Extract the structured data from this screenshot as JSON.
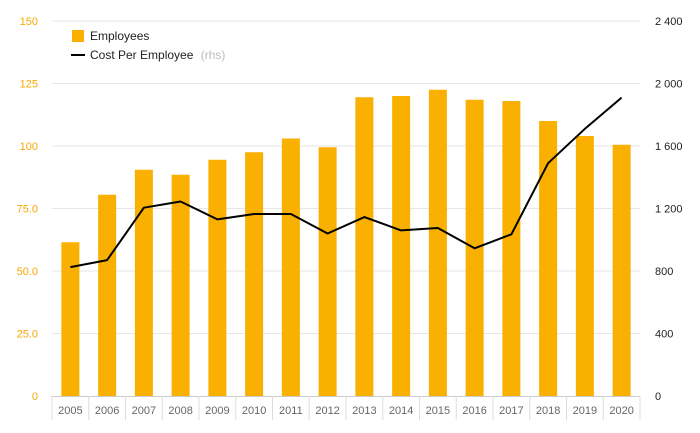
{
  "chart_data": {
    "type": "bar",
    "categories": [
      "2005",
      "2006",
      "2007",
      "2008",
      "2009",
      "2010",
      "2011",
      "2012",
      "2013",
      "2014",
      "2015",
      "2016",
      "2017",
      "2018",
      "2019",
      "2020"
    ],
    "series": [
      {
        "name": "Employees",
        "type": "bar",
        "axis": "left",
        "values": [
          61.5,
          80.5,
          90.5,
          88.5,
          94.5,
          97.5,
          103,
          99.5,
          119.5,
          120,
          122.5,
          118.5,
          118,
          110,
          104,
          100.5
        ]
      },
      {
        "name": "Cost Per Employee",
        "type": "line",
        "axis": "right",
        "values": [
          825,
          870,
          1205,
          1245,
          1130,
          1165,
          1165,
          1040,
          1145,
          1060,
          1075,
          945,
          1035,
          1490,
          1710,
          1910
        ]
      }
    ],
    "legend": {
      "position": "top-left",
      "items": [
        {
          "label": "Employees",
          "note": ""
        },
        {
          "label": "Cost Per Employee",
          "note": "(rhs)"
        }
      ]
    },
    "y_left": {
      "ylim": [
        0,
        150
      ],
      "ticks": [
        0,
        25,
        50,
        75,
        100,
        125,
        150
      ],
      "tick_labels": [
        "0",
        "25.0",
        "50.0",
        "75.0",
        "100",
        "125",
        "150"
      ]
    },
    "y_right": {
      "ylim": [
        0,
        2400
      ],
      "ticks": [
        0,
        400,
        800,
        1200,
        1600,
        2000,
        2400
      ],
      "tick_labels": [
        "0",
        "400",
        "800",
        "1 200",
        "1 600",
        "2 000",
        "2 400"
      ]
    },
    "grid": true,
    "colors": {
      "bar": "#f9b000",
      "line": "#000000",
      "left_axis_text": "#f5a800",
      "grid": "#e6e6e6"
    }
  }
}
